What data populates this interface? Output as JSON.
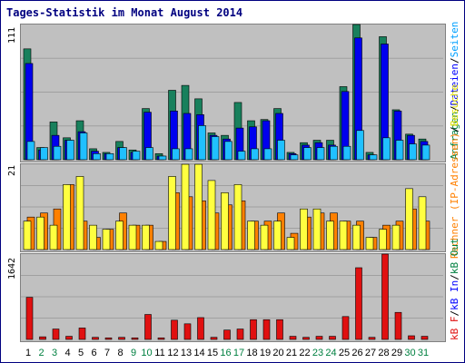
{
  "title": "Tages-Statistik im Monat August 2014",
  "colors": {
    "anfragen": "#18805c",
    "dateien": "#0000ee",
    "seiten": "#20c0ff",
    "rechner": "#ff8000",
    "besuche": "#ffff40",
    "kb": "#e01010",
    "weekend_label": "#008040",
    "weekday_label": "#000000",
    "panel_bg": "#c0c0c0",
    "title": "#000080"
  },
  "right_labels": {
    "top": [
      {
        "text": "Anfragen",
        "color": "#008040"
      },
      {
        "text": "/",
        "color": "#000000"
      },
      {
        "text": "Dateien",
        "color": "#0000ff"
      },
      {
        "text": "/",
        "color": "#000000"
      },
      {
        "text": "Seiten",
        "color": "#00a0ff"
      }
    ],
    "middle": [
      {
        "text": "Rechner (IP-Adressen)",
        "color": "#ff8000"
      },
      {
        "text": "/",
        "color": "#000000"
      },
      {
        "text": "Besuche",
        "color": "#e0e000"
      }
    ],
    "bottom": [
      {
        "text": "kB F",
        "color": "#e01010"
      },
      {
        "text": "/",
        "color": "#000000"
      },
      {
        "text": "kB In",
        "color": "#0000ff"
      },
      {
        "text": "/",
        "color": "#000000"
      },
      {
        "text": "kB Out",
        "color": "#008040"
      }
    ]
  },
  "chart_data": {
    "type": "bar",
    "categories": [
      "1",
      "2",
      "3",
      "4",
      "5",
      "6",
      "7",
      "8",
      "9",
      "10",
      "11",
      "12",
      "13",
      "14",
      "15",
      "16",
      "17",
      "18",
      "19",
      "20",
      "21",
      "22",
      "23",
      "24",
      "25",
      "26",
      "27",
      "28",
      "29",
      "30",
      "31"
    ],
    "weekend_days": [
      "2",
      "3",
      "9",
      "10",
      "16",
      "17",
      "23",
      "24",
      "30",
      "31"
    ],
    "panels": [
      {
        "name": "requests",
        "ymax_label": "111",
        "ylim": [
          0,
          111
        ],
        "series": [
          {
            "name": "Anfragen",
            "values": [
              91,
              10,
              31,
              18,
              32,
              9,
              6,
              15,
              8,
              42,
              5,
              57,
              61,
              50,
              22,
              20,
              47,
              32,
              33,
              42,
              6,
              14,
              16,
              16,
              60,
              111,
              6,
              101,
              41,
              21,
              17
            ]
          },
          {
            "name": "Dateien",
            "values": [
              79,
              8,
              20,
              16,
              23,
              7,
              5,
              10,
              6,
              39,
              3,
              40,
              38,
              37,
              20,
              17,
              26,
              27,
              32,
              38,
              5,
              12,
              14,
              12,
              56,
              100,
              4,
              95,
              40,
              20,
              15
            ]
          },
          {
            "name": "Seiten",
            "values": [
              15,
              10,
              11,
              16,
              22,
              5,
              5,
              10,
              7,
              10,
              3,
              9,
              9,
              28,
              19,
              15,
              7,
              9,
              9,
              16,
              4,
              10,
              10,
              11,
              11,
              24,
              4,
              18,
              16,
              13,
              12
            ]
          }
        ]
      },
      {
        "name": "visits",
        "ymax_label": "21",
        "ylim": [
          0,
          21
        ],
        "series": [
          {
            "name": "Rechner (IP-Adressen)",
            "values": [
              8,
              9,
              10,
              16,
              7,
              3,
              5,
              9,
              6,
              6,
              2,
              14,
              13,
              12,
              9,
              11,
              12,
              7,
              7,
              9,
              4,
              8,
              9,
              9,
              7,
              7,
              3,
              6,
              7,
              10,
              7
            ]
          },
          {
            "name": "Besuche",
            "values": [
              7,
              8,
              6,
              16,
              18,
              6,
              5,
              7,
              6,
              6,
              2,
              18,
              21,
              21,
              17,
              14,
              16,
              7,
              6,
              7,
              3,
              10,
              10,
              7,
              7,
              6,
              3,
              5,
              6,
              15,
              13
            ]
          }
        ]
      },
      {
        "name": "kb",
        "ymax_label": "1642",
        "ylim": [
          0,
          1642
        ],
        "series": [
          {
            "name": "kB F",
            "values": [
              810,
              50,
              200,
              60,
              220,
              40,
              30,
              40,
              30,
              480,
              30,
              370,
              300,
              420,
              40,
              180,
              200,
              380,
              380,
              380,
              60,
              40,
              60,
              60,
              440,
              1380,
              40,
              1642,
              520,
              70,
              60
            ]
          }
        ]
      }
    ]
  }
}
